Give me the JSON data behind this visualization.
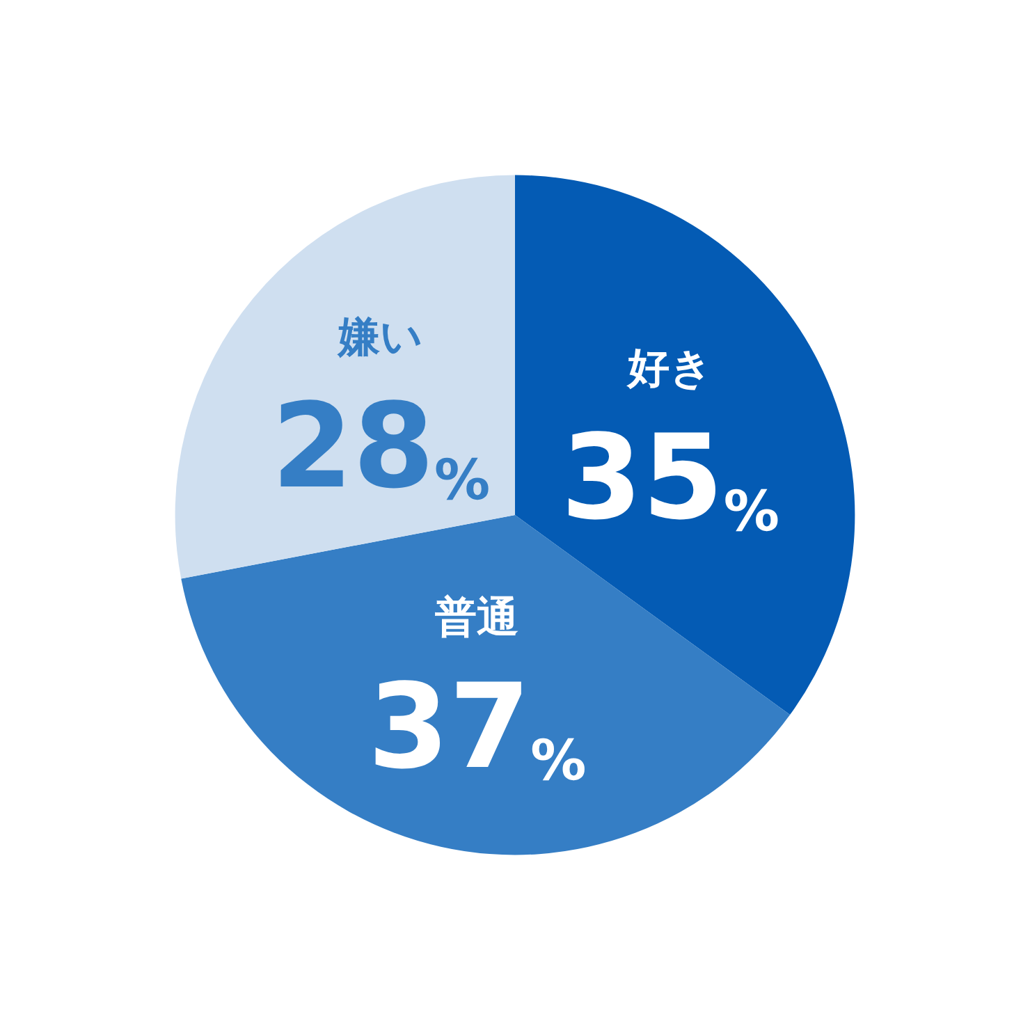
{
  "chart_data": {
    "type": "pie",
    "categories": [
      "好き",
      "普通",
      "嫌い"
    ],
    "values": [
      35,
      37,
      28
    ],
    "colors": [
      "#045bb4",
      "#357ec5",
      "#cfdff0"
    ],
    "value_labels": [
      "35%",
      "37%",
      "28%"
    ],
    "legend": false
  }
}
